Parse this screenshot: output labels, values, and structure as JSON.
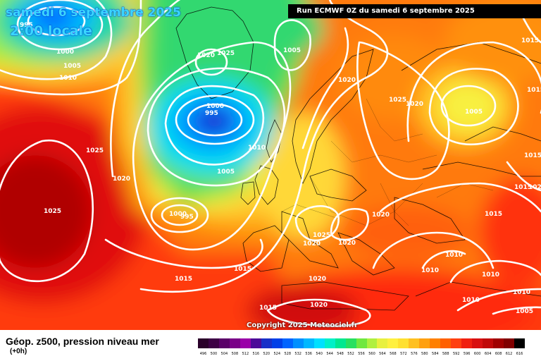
{
  "header": {
    "date": "samedi 6 septembre 2025",
    "time": "2:00 locale",
    "run": "Run ECMWF 0Z du samedi 6 septembre 2025"
  },
  "copyright": "Copyright 2025 Meteociel.fr",
  "footer": {
    "title": "Géop. z500, pression niveau mer",
    "subtitle": "(+0h)"
  },
  "legend": {
    "values": [
      "496",
      "500",
      "504",
      "508",
      "512",
      "516",
      "520",
      "524",
      "528",
      "532",
      "536",
      "540",
      "544",
      "548",
      "552",
      "556",
      "560",
      "564",
      "568",
      "572",
      "576",
      "580",
      "584",
      "588",
      "592",
      "596",
      "600",
      "604",
      "608",
      "612",
      "616"
    ],
    "colors": [
      "#2a002a",
      "#3d0045",
      "#5a0068",
      "#7a0088",
      "#9a00a8",
      "#4b0a98",
      "#1830c8",
      "#0040e8",
      "#0064ff",
      "#0090ff",
      "#00b8ff",
      "#00e0ff",
      "#00f0c8",
      "#00e890",
      "#28e060",
      "#70e840",
      "#b0f040",
      "#e8f040",
      "#fff040",
      "#ffe030",
      "#ffc020",
      "#ffa010",
      "#ff8000",
      "#ff6000",
      "#ff4010",
      "#f02010",
      "#d81010",
      "#c00808",
      "#a00000",
      "#800000",
      "#000000"
    ]
  },
  "isobars": [
    {
      "text": "995"
    },
    {
      "text": "1000"
    },
    {
      "text": "1005"
    },
    {
      "text": "1010"
    },
    {
      "text": "1020"
    },
    {
      "text": "1025"
    },
    {
      "text": "1005"
    },
    {
      "text": "1025"
    },
    {
      "text": "1020"
    },
    {
      "text": "1020"
    },
    {
      "text": "1000"
    },
    {
      "text": "995"
    },
    {
      "text": "1010"
    },
    {
      "text": "1005"
    },
    {
      "text": "1000"
    },
    {
      "text": "995"
    },
    {
      "text": "1025"
    },
    {
      "text": "1020"
    },
    {
      "text": "1025"
    },
    {
      "text": "1020"
    },
    {
      "text": "1005"
    },
    {
      "text": "1015"
    },
    {
      "text": "1015"
    },
    {
      "text": "1015"
    },
    {
      "text": "1015"
    },
    {
      "text": "1020"
    },
    {
      "text": "1025"
    },
    {
      "text": "1020"
    },
    {
      "text": "1020"
    },
    {
      "text": "1015"
    },
    {
      "text": "1015"
    },
    {
      "text": "1020"
    },
    {
      "text": "1015"
    },
    {
      "text": "1020"
    },
    {
      "text": "1015"
    },
    {
      "text": "1010"
    },
    {
      "text": "1010"
    },
    {
      "text": "1010"
    },
    {
      "text": "1010"
    },
    {
      "text": "1010"
    },
    {
      "text": "1005"
    }
  ]
}
